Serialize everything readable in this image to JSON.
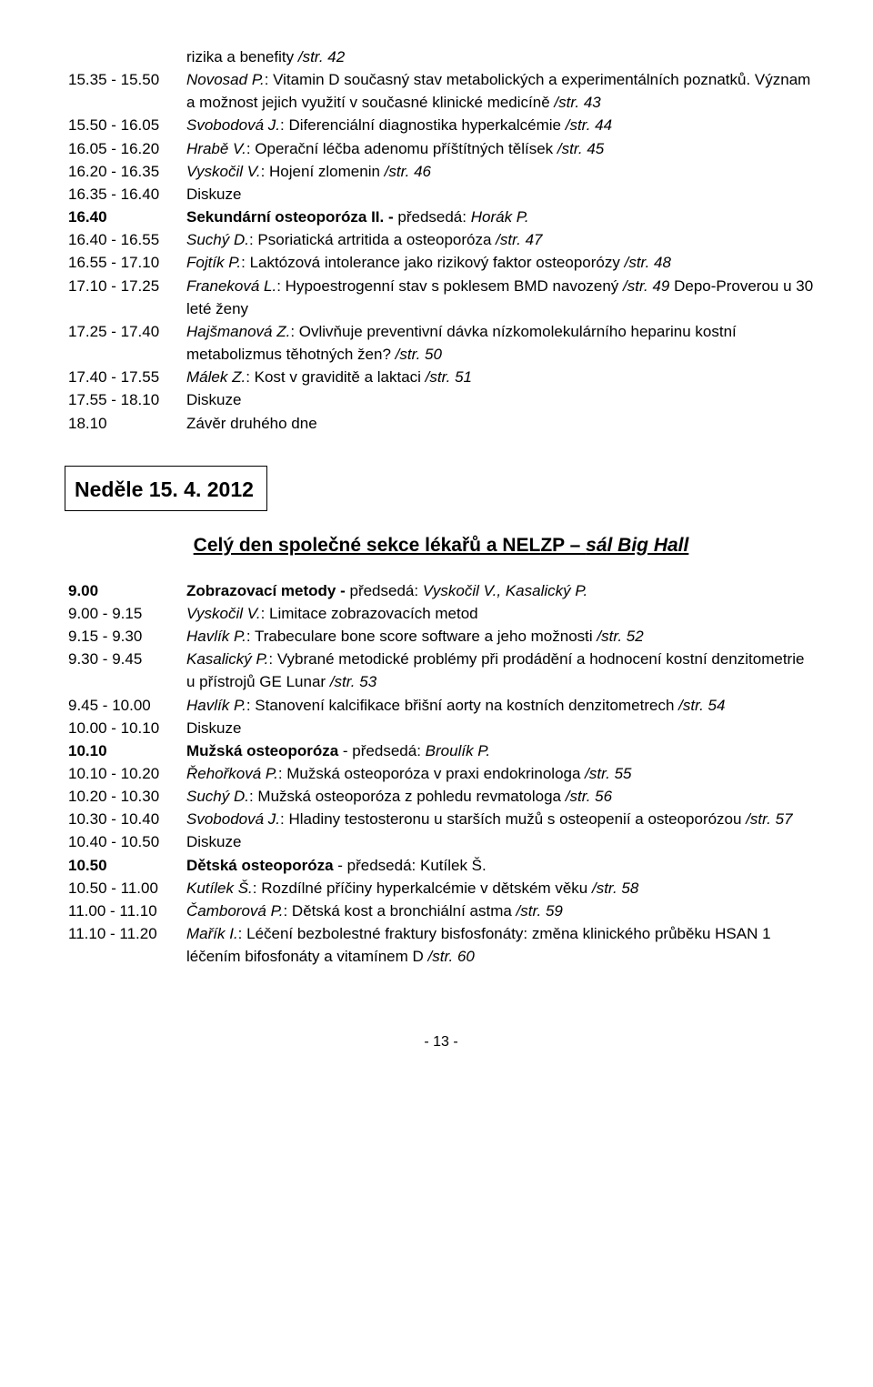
{
  "block1": [
    {
      "time": "",
      "desc": [
        {
          "t": "rizika a benefity ",
          "cls": ""
        },
        {
          "t": "/str. 42",
          "cls": "page-ref"
        }
      ]
    },
    {
      "time": "15.35 - 15.50",
      "desc": [
        {
          "t": "Novosad P.",
          "cls": "italic"
        },
        {
          "t": ": Vitamin D současný stav metabolických a experimentálních poznatků. Význam a možnost jejich využití v současné klinické medicíně ",
          "cls": ""
        },
        {
          "t": "/str. 43",
          "cls": "page-ref"
        }
      ]
    },
    {
      "time": "15.50 - 16.05",
      "desc": [
        {
          "t": "Svobodová J.",
          "cls": "italic"
        },
        {
          "t": ": Diferenciální diagnostika hyperkalcémie ",
          "cls": ""
        },
        {
          "t": "/str. 44",
          "cls": "page-ref"
        }
      ]
    },
    {
      "time": "16.05 - 16.20",
      "desc": [
        {
          "t": "Hrabě V.",
          "cls": "italic"
        },
        {
          "t": ": Operační léčba adenomu příštítných tělísek ",
          "cls": ""
        },
        {
          "t": "/str. 45",
          "cls": "page-ref"
        }
      ]
    },
    {
      "time": "16.20 - 16.35",
      "desc": [
        {
          "t": "Vyskočil V.",
          "cls": "italic"
        },
        {
          "t": ": Hojení zlomenin ",
          "cls": ""
        },
        {
          "t": "/str. 46",
          "cls": "page-ref"
        }
      ]
    },
    {
      "time": "16.35 - 16.40",
      "desc": [
        {
          "t": "Diskuze",
          "cls": ""
        }
      ]
    },
    {
      "time": "16.40",
      "time_cls": "bold",
      "desc": [
        {
          "t": "Sekundární osteoporóza II. - ",
          "cls": "bold"
        },
        {
          "t": "předsedá: ",
          "cls": ""
        },
        {
          "t": "Horák P.",
          "cls": "italic"
        }
      ]
    },
    {
      "time": "16.40 - 16.55",
      "desc": [
        {
          "t": "Suchý D.",
          "cls": "italic"
        },
        {
          "t": ": Psoriatická artritida a osteoporóza ",
          "cls": ""
        },
        {
          "t": "/str. 47",
          "cls": "page-ref"
        }
      ]
    },
    {
      "time": "16.55 - 17.10",
      "desc": [
        {
          "t": "Fojtík P.",
          "cls": "italic"
        },
        {
          "t": ": Laktózová intolerance jako rizikový faktor osteoporózy ",
          "cls": ""
        },
        {
          "t": "/str. 48",
          "cls": "page-ref"
        }
      ]
    },
    {
      "time": "17.10 - 17.25",
      "desc": [
        {
          "t": "Franeková L.",
          "cls": "italic"
        },
        {
          "t": ": Hypoestrogenní stav s poklesem BMD navozený ",
          "cls": ""
        },
        {
          "t": "/str. 49",
          "cls": "page-ref"
        },
        {
          "t": " Depo-Proverou u 30 leté ženy",
          "cls": ""
        }
      ]
    },
    {
      "time": "17.25 - 17.40",
      "desc": [
        {
          "t": "Hajšmanová Z.",
          "cls": "italic"
        },
        {
          "t": ": Ovlivňuje preventivní dávka nízkomolekulárního heparinu kostní metabolizmus těhotných žen? ",
          "cls": ""
        },
        {
          "t": "/str. 50",
          "cls": "page-ref"
        }
      ]
    },
    {
      "time": "17.40 - 17.55",
      "desc": [
        {
          "t": "Málek Z.",
          "cls": "italic"
        },
        {
          "t": ": Kost v graviditě a laktaci ",
          "cls": ""
        },
        {
          "t": "/str. 51",
          "cls": "page-ref"
        }
      ]
    },
    {
      "time": "17.55 - 18.10",
      "desc": [
        {
          "t": "Diskuze",
          "cls": ""
        }
      ]
    },
    {
      "time": "18.10",
      "desc": [
        {
          "t": "Závěr druhého dne",
          "cls": ""
        }
      ]
    }
  ],
  "day_heading": "Neděle 15. 4. 2012",
  "section_heading": {
    "plain": "Celý den společné sekce lékařů a NELZP – ",
    "italic": "sál Big Hall"
  },
  "block2": [
    {
      "time": "9.00",
      "time_cls": "bold",
      "desc": [
        {
          "t": "Zobrazovací metody - ",
          "cls": "bold"
        },
        {
          "t": "předsedá: ",
          "cls": ""
        },
        {
          "t": "Vyskočil V., Kasalický P.",
          "cls": "italic"
        }
      ]
    },
    {
      "time": "9.00 - 9.15",
      "desc": [
        {
          "t": "Vyskočil V.",
          "cls": "italic"
        },
        {
          "t": ": Limitace zobrazovacích metod",
          "cls": ""
        }
      ]
    },
    {
      "time": "9.15 - 9.30",
      "desc": [
        {
          "t": "Havlík P.",
          "cls": "italic"
        },
        {
          "t": ": Trabeculare bone score software a jeho možnosti ",
          "cls": ""
        },
        {
          "t": "/str. 52",
          "cls": "page-ref"
        }
      ]
    },
    {
      "time": "9.30 - 9.45",
      "desc": [
        {
          "t": "Kasalický P.",
          "cls": "italic"
        },
        {
          "t": ": Vybrané  metodické problémy při prodádění a hodnocení kostní denzitometrie u přístrojů GE Lunar ",
          "cls": ""
        },
        {
          "t": "/str. 53",
          "cls": "page-ref"
        }
      ]
    },
    {
      "time": "9.45 - 10.00",
      "desc": [
        {
          "t": "Havlík P.",
          "cls": "italic"
        },
        {
          "t": ": Stanovení kalcifikace břišní aorty na kostních denzitometrech ",
          "cls": ""
        },
        {
          "t": "/str. 54",
          "cls": "page-ref"
        }
      ]
    },
    {
      "time": "10.00 - 10.10",
      "desc": [
        {
          "t": "Diskuze",
          "cls": ""
        }
      ]
    },
    {
      "time": "10.10",
      "time_cls": "bold",
      "desc": [
        {
          "t": "Mužská osteoporóza",
          "cls": "bold"
        },
        {
          "t": " - předsedá: ",
          "cls": ""
        },
        {
          "t": "Broulík P.",
          "cls": "italic"
        }
      ]
    },
    {
      "time": "10.10 - 10.20",
      "desc": [
        {
          "t": "Řehořková P.",
          "cls": "italic"
        },
        {
          "t": ": Mužská osteoporóza v praxi endokrinologa ",
          "cls": ""
        },
        {
          "t": "/str. 55",
          "cls": "page-ref"
        }
      ]
    },
    {
      "time": "10.20 - 10.30",
      "desc": [
        {
          "t": "Suchý D.",
          "cls": "italic"
        },
        {
          "t": ": Mužská osteoporóza z pohledu revmatologa ",
          "cls": ""
        },
        {
          "t": "/str. 56",
          "cls": "page-ref"
        }
      ]
    },
    {
      "time": "10.30 - 10.40",
      "desc": [
        {
          "t": "Svobodová J.",
          "cls": "italic"
        },
        {
          "t": ": Hladiny testosteronu u starších mužů s osteopenií a osteoporózou ",
          "cls": ""
        },
        {
          "t": "/str. 57",
          "cls": "page-ref"
        }
      ]
    },
    {
      "time": "10.40 - 10.50",
      "desc": [
        {
          "t": "Diskuze",
          "cls": ""
        }
      ]
    },
    {
      "time": "10.50",
      "time_cls": "bold",
      "desc": [
        {
          "t": "Dětská osteoporóza",
          "cls": "bold"
        },
        {
          "t": " - předsedá: Kutílek Š.",
          "cls": ""
        }
      ]
    },
    {
      "time": "10.50 - 11.00",
      "desc": [
        {
          "t": "Kutílek Š.",
          "cls": "italic"
        },
        {
          "t": ": Rozdílné příčiny hyperkalcémie v dětském věku ",
          "cls": ""
        },
        {
          "t": "/str. 58",
          "cls": "page-ref"
        }
      ]
    },
    {
      "time": "11.00 - 11.10",
      "desc": [
        {
          "t": "Čamborová P.",
          "cls": "italic"
        },
        {
          "t": ": Dětská kost a bronchiální astma ",
          "cls": ""
        },
        {
          "t": "/str. 59",
          "cls": "page-ref"
        }
      ]
    },
    {
      "time": "11.10 - 11.20",
      "desc": [
        {
          "t": "Mařík I.",
          "cls": "italic"
        },
        {
          "t": ": Léčení bezbolestné fraktury bisfosfonáty: změna klinického průběku HSAN 1 léčením bifosfonáty a vitamínem D ",
          "cls": ""
        },
        {
          "t": "/str. 60",
          "cls": "page-ref"
        }
      ]
    }
  ],
  "page_number": "- 13 -"
}
